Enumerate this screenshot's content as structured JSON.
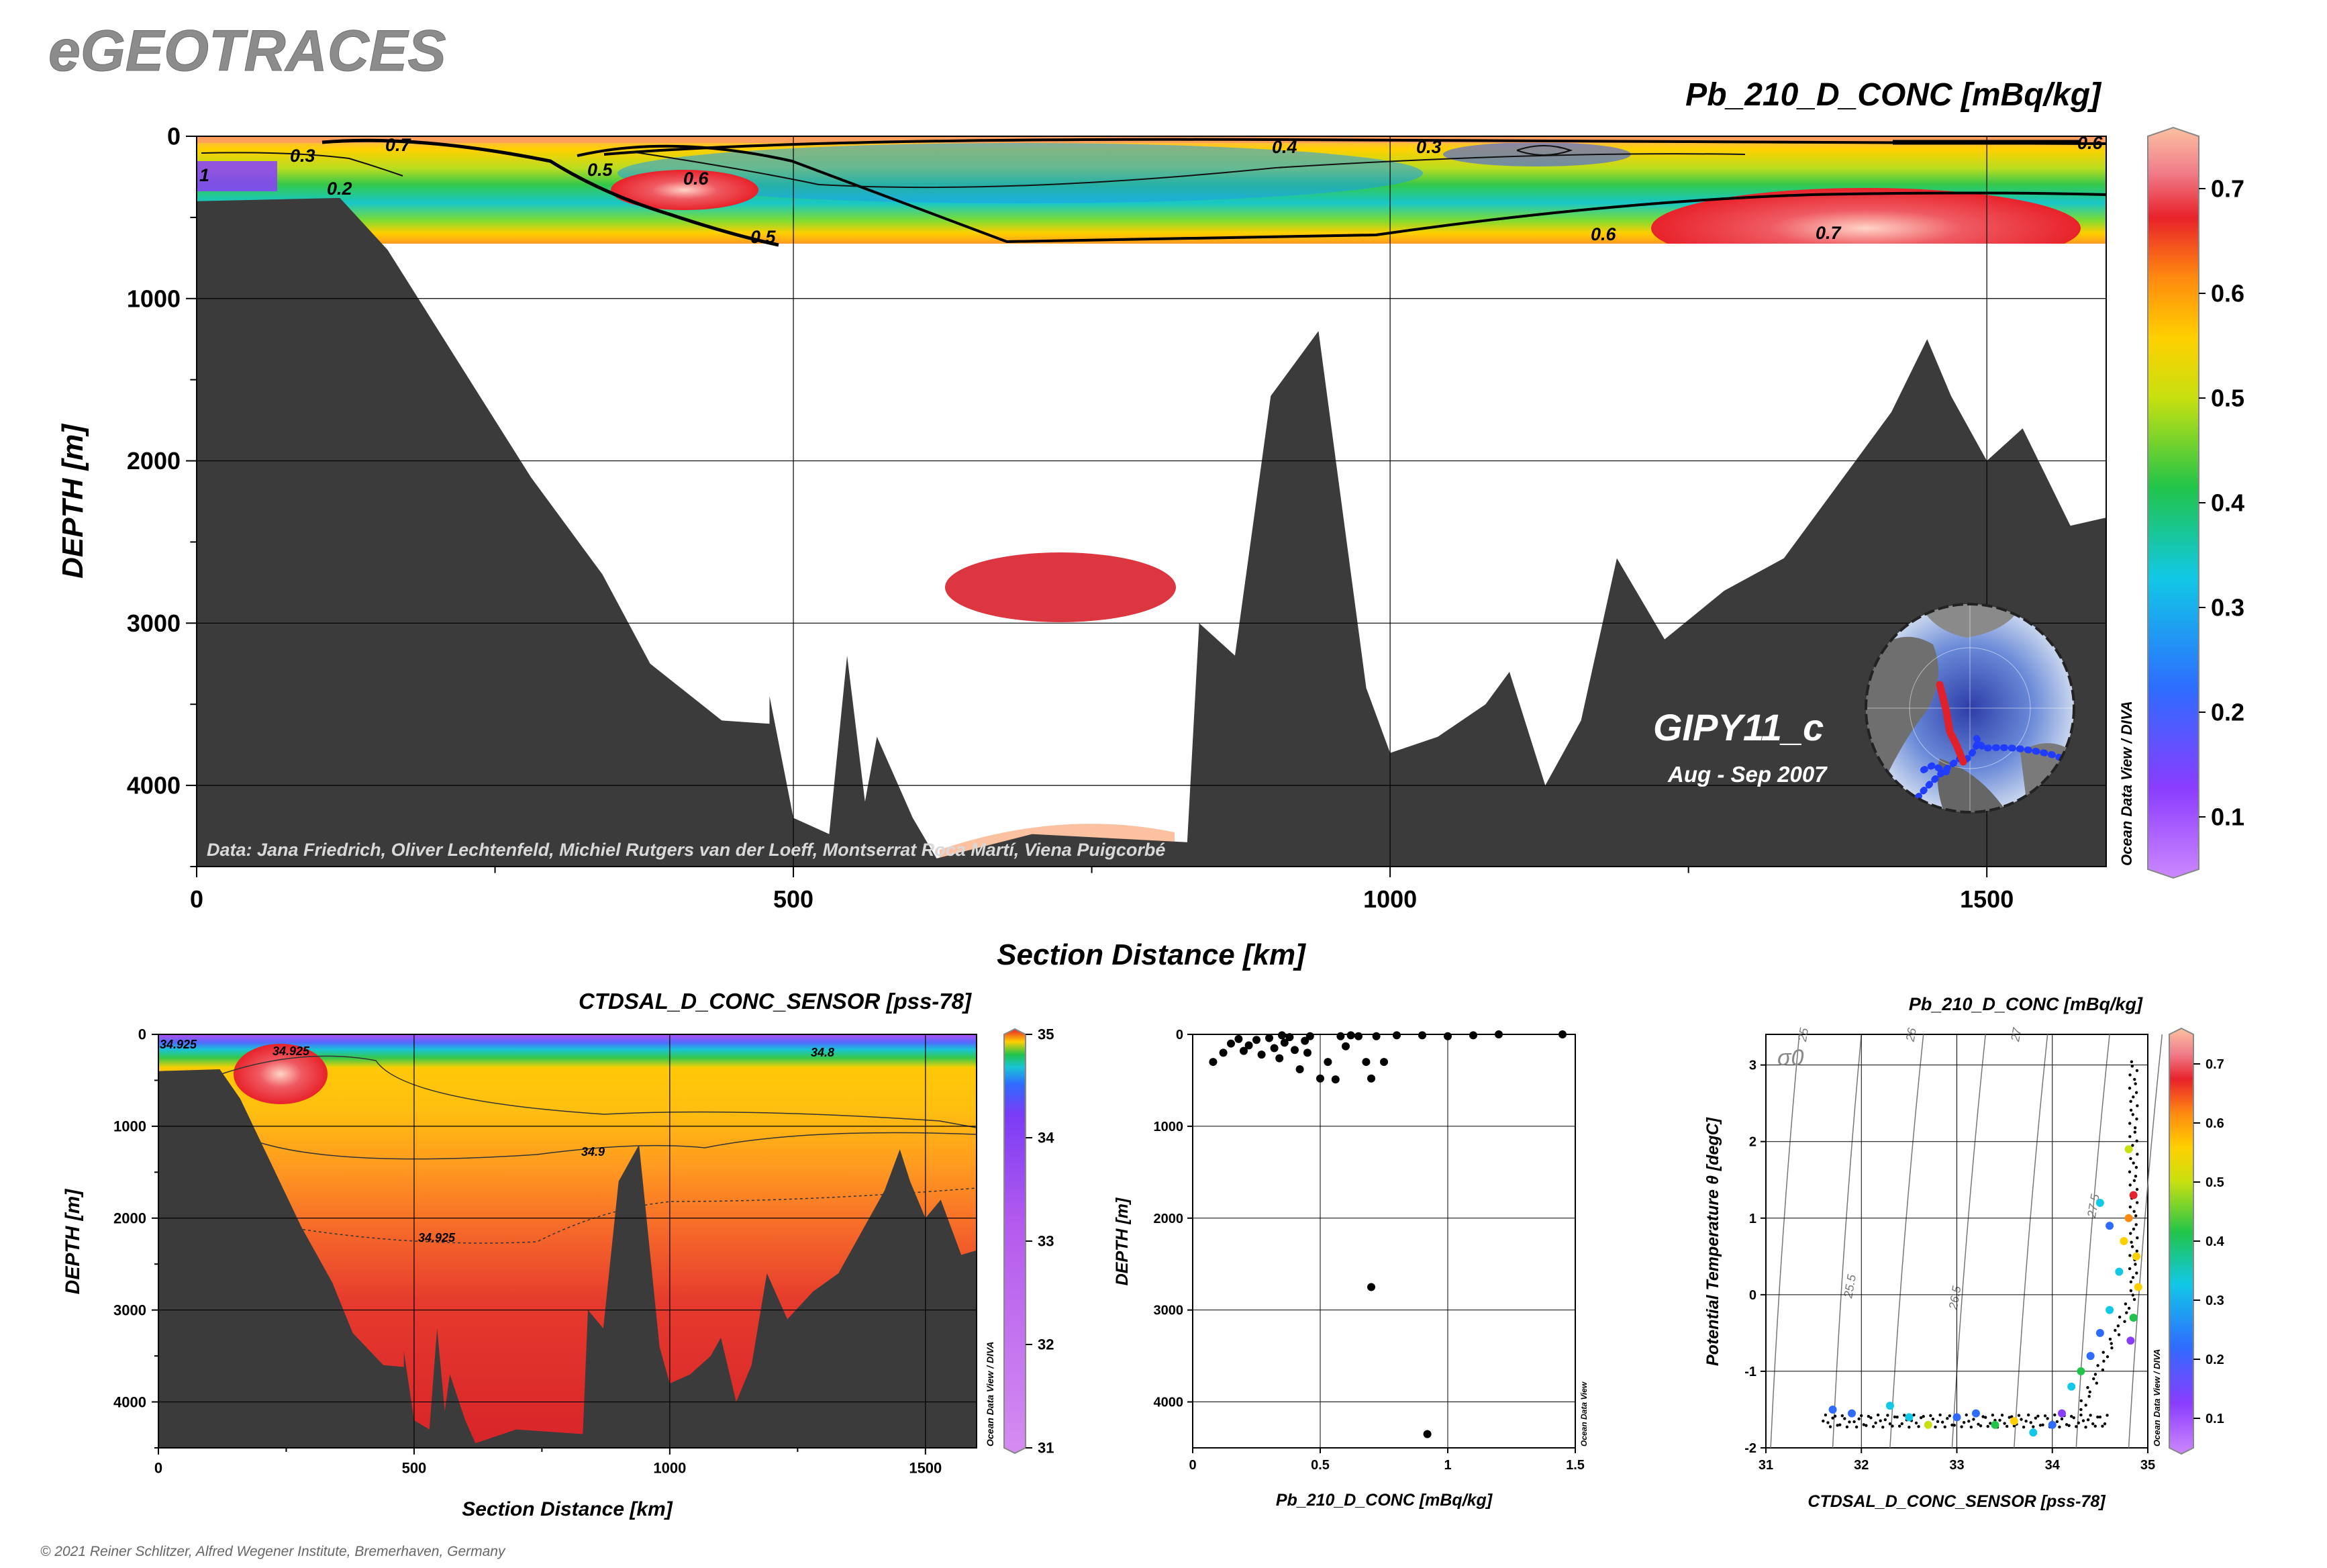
{
  "brand": "eGEOTRACES",
  "copyright": "© 2021 Reiner Schlitzer, Alfred Wegener Institute, Bremerhaven, Germany",
  "odv_tag": "Ocean Data View / DIVA",
  "odv_tag_small": "Ocean Data View",
  "colors": {
    "ocean_floor": "#3b3b3b",
    "grid": "#000000",
    "axis_text": "#000000",
    "brand_text": "#8c8c8c",
    "contour": "#000000",
    "scatter_point": "#000000",
    "station_track_blue": "#1f3cff",
    "station_track_red": "#e0202a"
  },
  "main_section": {
    "variable": "Pb_210_D_CONC [mBq/kg]",
    "cruise": "GIPY11_c",
    "dates": "Aug - Sep 2007",
    "credits": "Data: Jana Friedrich, Oliver Lechtenfeld, Michiel Rutgers van der Loeff, Montserrat Roca Martí, Viena Puigcorbé"
  },
  "chart_data": [
    {
      "type": "heatmap",
      "title": "Pb_210_D_CONC [mBq/kg]",
      "xlabel": "Section Distance [km]",
      "ylabel": "DEPTH [m]",
      "xlim": [
        0,
        1600
      ],
      "ylim": [
        4500,
        0
      ],
      "x_ticks": [
        "0",
        "500",
        "1000",
        "1500"
      ],
      "y_ticks": [
        "0",
        "1000",
        "2000",
        "3000",
        "4000"
      ],
      "contour_labels": [
        "0.7",
        "0.3",
        "0.5",
        "0.6",
        "0.5",
        "0.4",
        "0.3",
        "0.6",
        "0.7",
        "0.6",
        "0.2",
        "1"
      ],
      "colorbar": {
        "min": 0.05,
        "max": 0.75,
        "ticks": [
          "0.1",
          "0.2",
          "0.3",
          "0.4",
          "0.5",
          "0.6",
          "0.7"
        ]
      },
      "bathymetry": [
        [
          0,
          400
        ],
        [
          120,
          380
        ],
        [
          160,
          700
        ],
        [
          220,
          1400
        ],
        [
          280,
          2100
        ],
        [
          340,
          2700
        ],
        [
          380,
          3250
        ],
        [
          440,
          3600
        ],
        [
          480,
          3620
        ],
        [
          480,
          3450
        ],
        [
          500,
          4200
        ],
        [
          530,
          4300
        ],
        [
          545,
          3200
        ],
        [
          560,
          4100
        ],
        [
          570,
          3700
        ],
        [
          600,
          4200
        ],
        [
          620,
          4450
        ],
        [
          700,
          4300
        ],
        [
          830,
          4350
        ],
        [
          840,
          3000
        ],
        [
          870,
          3200
        ],
        [
          900,
          1600
        ],
        [
          940,
          1200
        ],
        [
          980,
          3400
        ],
        [
          1000,
          3800
        ],
        [
          1040,
          3700
        ],
        [
          1080,
          3500
        ],
        [
          1100,
          3300
        ],
        [
          1130,
          4000
        ],
        [
          1160,
          3600
        ],
        [
          1190,
          2600
        ],
        [
          1230,
          3100
        ],
        [
          1280,
          2800
        ],
        [
          1330,
          2600
        ],
        [
          1380,
          2100
        ],
        [
          1420,
          1700
        ],
        [
          1450,
          1250
        ],
        [
          1470,
          1600
        ],
        [
          1500,
          2000
        ],
        [
          1530,
          1800
        ],
        [
          1570,
          2400
        ],
        [
          1600,
          2350
        ]
      ],
      "features": [
        {
          "name": "deep-pb-maximum",
          "x": 720,
          "depth": 2800,
          "value": 0.65
        },
        {
          "name": "bottom-pb-maximum",
          "x": 720,
          "depth": 4350,
          "value": 0.75
        },
        {
          "name": "shelf-pb-maximum",
          "x": 410,
          "depth": 320,
          "value": 0.63
        },
        {
          "name": "east-pb-maximum",
          "x": 1400,
          "depth": 550,
          "value": 0.66
        }
      ]
    },
    {
      "type": "heatmap",
      "title": "CTDSAL_D_CONC_SENSOR [pss-78]",
      "xlabel": "Section Distance [km]",
      "ylabel": "DEPTH [m]",
      "xlim": [
        0,
        1600
      ],
      "ylim": [
        4500,
        0
      ],
      "x_ticks": [
        "0",
        "500",
        "1000",
        "1500"
      ],
      "y_ticks": [
        "0",
        "1000",
        "2000",
        "3000",
        "4000"
      ],
      "contour_labels": [
        "34.925",
        "34.8",
        "34.9",
        "34.925",
        "34.925"
      ],
      "colorbar": {
        "min": 31,
        "max": 35,
        "ticks": [
          "31",
          "32",
          "33",
          "34",
          "35"
        ]
      }
    },
    {
      "type": "scatter",
      "xlabel": "Pb_210_D_CONC [mBq/kg]",
      "ylabel": "DEPTH [m]",
      "xlim": [
        0,
        1.5
      ],
      "ylim": [
        4500,
        0
      ],
      "x_ticks": [
        "0",
        "0.5",
        "1",
        "1.5"
      ],
      "y_ticks": [
        "0",
        "1000",
        "2000",
        "3000",
        "4000"
      ],
      "points": [
        [
          0.08,
          300
        ],
        [
          0.12,
          200
        ],
        [
          0.15,
          100
        ],
        [
          0.18,
          50
        ],
        [
          0.2,
          180
        ],
        [
          0.22,
          120
        ],
        [
          0.25,
          60
        ],
        [
          0.27,
          220
        ],
        [
          0.3,
          40
        ],
        [
          0.32,
          150
        ],
        [
          0.34,
          260
        ],
        [
          0.36,
          90
        ],
        [
          0.38,
          30
        ],
        [
          0.4,
          170
        ],
        [
          0.42,
          380
        ],
        [
          0.44,
          70
        ],
        [
          0.46,
          20
        ],
        [
          0.5,
          480
        ],
        [
          0.53,
          300
        ],
        [
          0.56,
          490
        ],
        [
          0.6,
          130
        ],
        [
          0.62,
          10
        ],
        [
          0.65,
          20
        ],
        [
          0.68,
          300
        ],
        [
          0.7,
          480
        ],
        [
          0.72,
          20
        ],
        [
          0.75,
          300
        ],
        [
          0.8,
          10
        ],
        [
          0.9,
          10
        ],
        [
          1.0,
          20
        ],
        [
          1.1,
          10
        ],
        [
          1.2,
          0
        ],
        [
          1.45,
          0
        ],
        [
          0.7,
          2750
        ],
        [
          0.92,
          4350
        ],
        [
          0.58,
          20
        ],
        [
          0.45,
          200
        ],
        [
          0.35,
          10
        ]
      ]
    },
    {
      "type": "scatter",
      "title": "Pb_210_D_CONC [mBq/kg]",
      "xlabel": "CTDSAL_D_CONC_SENSOR [pss-78]",
      "ylabel": "Potential Temperature θ [degC]",
      "xlim": [
        31,
        35
      ],
      "ylim": [
        -2,
        3.4
      ],
      "x_ticks": [
        "31",
        "32",
        "33",
        "34",
        "35"
      ],
      "y_ticks": [
        "-2",
        "-1",
        "0",
        "1",
        "2",
        "3"
      ],
      "isopycnal_symbol": "σ0",
      "isopycnal_labels": [
        "25",
        "25.5",
        "26",
        "26.5",
        "27",
        "27.5"
      ],
      "colorbar": {
        "min": 0.05,
        "max": 0.75,
        "ticks": [
          "0.1",
          "0.2",
          "0.3",
          "0.4",
          "0.5",
          "0.6",
          "0.7"
        ]
      },
      "colored_points": [
        [
          31.7,
          -1.5,
          0.3
        ],
        [
          31.9,
          -1.55,
          0.25
        ],
        [
          32.3,
          -1.45,
          0.35
        ],
        [
          32.5,
          -1.6,
          0.4
        ],
        [
          32.7,
          -1.7,
          0.5
        ],
        [
          33.0,
          -1.6,
          0.3
        ],
        [
          33.2,
          -1.55,
          0.25
        ],
        [
          33.4,
          -1.7,
          0.45
        ],
        [
          33.6,
          -1.65,
          0.55
        ],
        [
          33.8,
          -1.8,
          0.35
        ],
        [
          34.0,
          -1.7,
          0.3
        ],
        [
          34.1,
          -1.55,
          0.2
        ],
        [
          34.2,
          -1.2,
          0.35
        ],
        [
          34.3,
          -1.0,
          0.45
        ],
        [
          34.4,
          -0.8,
          0.3
        ],
        [
          34.5,
          -0.5,
          0.25
        ],
        [
          34.6,
          -0.2,
          0.35
        ],
        [
          34.7,
          0.3,
          0.4
        ],
        [
          34.75,
          0.7,
          0.6
        ],
        [
          34.8,
          1.0,
          0.65
        ],
        [
          34.85,
          1.3,
          0.7
        ],
        [
          34.8,
          1.9,
          0.5
        ],
        [
          34.88,
          0.5,
          0.55
        ],
        [
          34.82,
          -0.6,
          0.15
        ],
        [
          34.85,
          -0.3,
          0.45
        ],
        [
          34.9,
          0.1,
          0.6
        ],
        [
          34.6,
          0.9,
          0.3
        ],
        [
          34.5,
          1.2,
          0.35
        ]
      ]
    }
  ]
}
